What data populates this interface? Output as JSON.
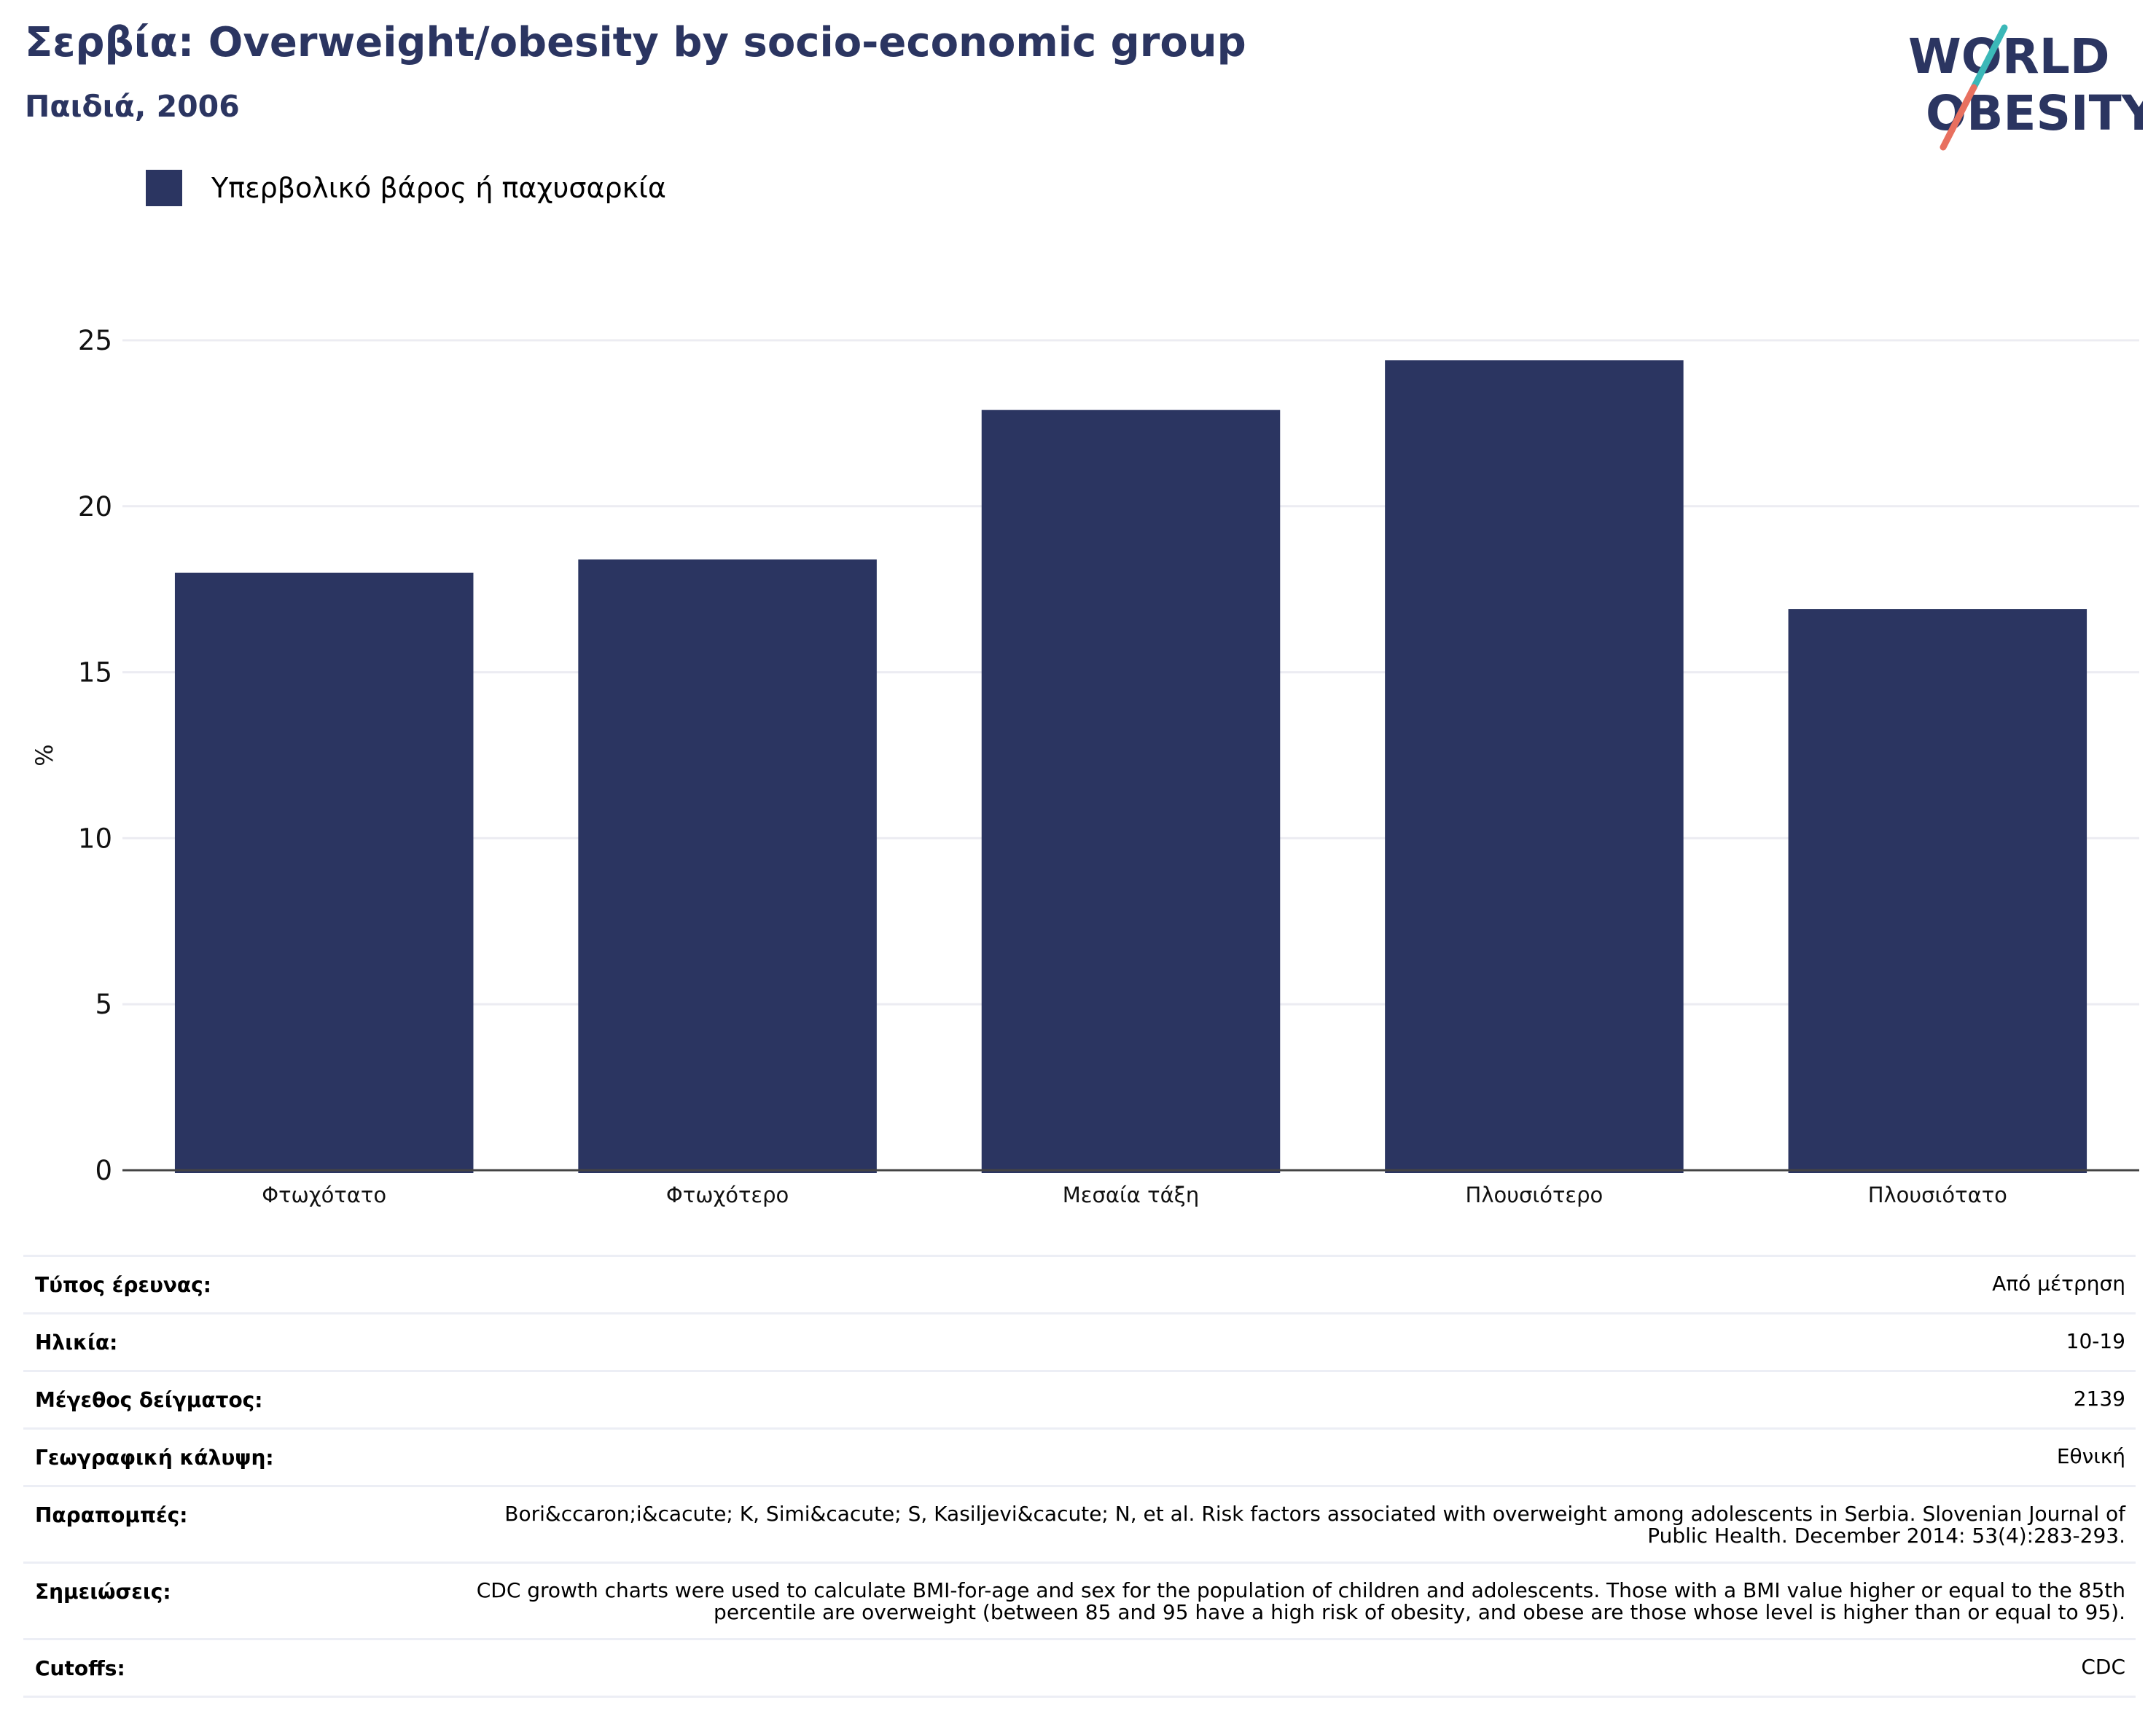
{
  "header": {
    "title": "Σερβία: Overweight/obesity by socio-economic group",
    "subtitle": "Παιδιά, 2006"
  },
  "logo": {
    "line1": "WORLD",
    "line2": "OBESITY"
  },
  "legend": {
    "label": "Υπερβολικό βάρος ή παχυσαρκία",
    "color": "#2b3561"
  },
  "chart_data": {
    "type": "bar",
    "categories": [
      "Φτωχότατο",
      "Φτωχότερο",
      "Μεσαία τάξη",
      "Πλουσιότερο",
      "Πλουσιότατο"
    ],
    "series": [
      {
        "name": "Υπερβολικό βάρος ή παχυσαρκία",
        "values": [
          18.0,
          18.4,
          22.9,
          24.4,
          16.9
        ],
        "color": "#2b3561"
      }
    ],
    "ylabel": "%",
    "xlabel": "",
    "ylim": [
      0,
      25
    ],
    "yticks": [
      0,
      5,
      10,
      15,
      20,
      25
    ],
    "grid": true,
    "legend_position": "top-left"
  },
  "info": [
    {
      "key": "Τύπος έρευνας:",
      "value": "Από μέτρηση"
    },
    {
      "key": "Ηλικία:",
      "value": "10-19"
    },
    {
      "key": "Μέγεθος δείγματος:",
      "value": "2139"
    },
    {
      "key": "Γεωγραφική κάλυψη:",
      "value": "Εθνική"
    },
    {
      "key": "Παραπομπές:",
      "value": "Bori&ccaron;i&cacute; K, Simi&cacute; S, Kasiljevi&cacute; N, et al. Risk factors associated with overweight among adolescents in Serbia. Slovenian Journal of Public Health. December 2014: 53(4):283-293."
    },
    {
      "key": "Σημειώσεις:",
      "value": "CDC growth charts were used to calculate BMI-for-age and sex for the population of children and adolescents. Those with a BMI value higher or equal to the 85th percentile are overweight (between 85 and 95 have a high risk of obesity, and obese are those whose level is higher than or equal to 95)."
    },
    {
      "key": "Cutoffs:",
      "value": "CDC"
    }
  ]
}
